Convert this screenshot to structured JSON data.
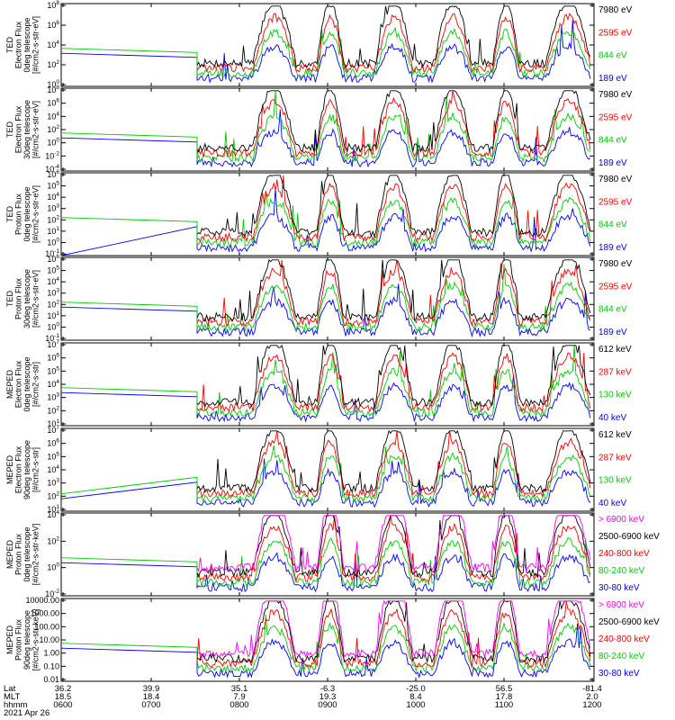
{
  "chart_data": [
    {
      "type": "line",
      "ylabel_lines": [
        "TED",
        "Electron Flux",
        "0deg telescope",
        "[#/cm2-s-str-eV]"
      ],
      "ytick_labels": [
        "10^0",
        "10^2",
        "10^4",
        "10^6",
        "10^8"
      ],
      "ylim_log10": [
        -0.3,
        8
      ],
      "series": [
        {
          "name": "7980 eV",
          "color": "#000000"
        },
        {
          "name": "2595 eV",
          "color": "#ff0000"
        },
        {
          "name": "844 eV",
          "color": "#00cc00"
        },
        {
          "name": "189 eV",
          "color": "#0000ff"
        }
      ]
    },
    {
      "type": "line",
      "ylabel_lines": [
        "TED",
        "Electron Flux",
        "30deg telescope",
        "[#/cm2-s-str-eV]"
      ],
      "ytick_labels": [
        "10^-4",
        "10^-2",
        "10^0",
        "10^2",
        "10^4",
        "10^6",
        "10^8"
      ],
      "ylim_log10": [
        -5,
        8
      ],
      "series": [
        {
          "name": "7980 eV",
          "color": "#000000"
        },
        {
          "name": "2595 eV",
          "color": "#ff0000"
        },
        {
          "name": "844 eV",
          "color": "#00cc00"
        },
        {
          "name": "189 eV",
          "color": "#0000ff"
        }
      ]
    },
    {
      "type": "line",
      "ylabel_lines": [
        "TED",
        "Proton Flux",
        "0deg telescope",
        "[#/cm2-s-str-eV]"
      ],
      "ytick_labels": [
        "10^-1",
        "10^0",
        "10^1",
        "10^2",
        "10^3",
        "10^4",
        "10^5",
        "10^6"
      ],
      "ylim_log10": [
        -1,
        6
      ],
      "series": [
        {
          "name": "7980 eV",
          "color": "#000000"
        },
        {
          "name": "2595 eV",
          "color": "#ff0000"
        },
        {
          "name": "844 eV",
          "color": "#00cc00"
        },
        {
          "name": "189 eV",
          "color": "#0000ff"
        }
      ]
    },
    {
      "type": "line",
      "ylabel_lines": [
        "TED",
        "Proton Flux",
        "30deg telescope",
        "[#/cm2-s-str-eV]"
      ],
      "ytick_labels": [
        "10^-1",
        "10^0",
        "10^1",
        "10^2",
        "10^3",
        "10^4",
        "10^5",
        "10^6"
      ],
      "ylim_log10": [
        -1,
        6
      ],
      "series": [
        {
          "name": "7980 eV",
          "color": "#000000"
        },
        {
          "name": "2595 eV",
          "color": "#ff0000"
        },
        {
          "name": "844 eV",
          "color": "#00cc00"
        },
        {
          "name": "189 eV",
          "color": "#0000ff"
        }
      ]
    },
    {
      "type": "line",
      "ylabel_lines": [
        "MEPED",
        "Electron Flux",
        "0deg telescope",
        "[#/cm2-s-str]"
      ],
      "ytick_labels": [
        "10^1",
        "10^2",
        "10^3",
        "10^4",
        "10^5",
        "10^6",
        "10^7"
      ],
      "ylim_log10": [
        1,
        7
      ],
      "series": [
        {
          "name": "612 keV",
          "color": "#000000"
        },
        {
          "name": "287 keV",
          "color": "#ff0000"
        },
        {
          "name": "130 keV",
          "color": "#00cc00"
        },
        {
          "name": "40 keV",
          "color": "#0000ff"
        }
      ]
    },
    {
      "type": "line",
      "ylabel_lines": [
        "MEPED",
        "Electron Flux",
        "90deg telescope",
        "[#/cm2-s-str]"
      ],
      "ytick_labels": [
        "10^1",
        "10^2",
        "10^3",
        "10^4",
        "10^5",
        "10^6",
        "10^7"
      ],
      "ylim_log10": [
        1,
        7
      ],
      "series": [
        {
          "name": "612 keV",
          "color": "#000000"
        },
        {
          "name": "287 keV",
          "color": "#ff0000"
        },
        {
          "name": "130 keV",
          "color": "#00cc00"
        },
        {
          "name": "40 keV",
          "color": "#0000ff"
        }
      ]
    },
    {
      "type": "line",
      "ylabel_lines": [
        "MEPED",
        "Proton Flux",
        "0deg telescope",
        "[#/cm2-s-str-keV]"
      ],
      "ytick_labels": [
        "10^-2",
        "10^0",
        "10^2",
        "10^4"
      ],
      "ylim_log10": [
        -2.5,
        5.2
      ],
      "series": [
        {
          "name": "> 6900 keV",
          "color": "#ff00ff"
        },
        {
          "name": "2500-6900 keV",
          "color": "#000000"
        },
        {
          "name": "240-800 keV",
          "color": "#ff0000"
        },
        {
          "name": "80-240 keV",
          "color": "#00cc00"
        },
        {
          "name": "30-80 keV",
          "color": "#0000ff"
        }
      ]
    },
    {
      "type": "line",
      "ylabel_lines": [
        "MEPED",
        "Proton Flux",
        "90deg telescope",
        "[#/cm2-s-str-keV]"
      ],
      "ytick_labels": [
        "0.01",
        "0.10",
        "1.00",
        "10.00",
        "100.00",
        "1000.00",
        "10000.00"
      ],
      "ylim_log10": [
        -2,
        4
      ],
      "series": [
        {
          "name": "> 6900 keV",
          "color": "#ff00ff"
        },
        {
          "name": "2500-6900 keV",
          "color": "#000000"
        },
        {
          "name": "240-800 keV",
          "color": "#ff0000"
        },
        {
          "name": "80-240 keV",
          "color": "#00cc00"
        },
        {
          "name": "30-80 keV",
          "color": "#0000ff"
        }
      ]
    }
  ],
  "x_axis": {
    "row_labels": [
      "Lat",
      "MLT",
      "hhmm"
    ],
    "date": "2021 Apr 26",
    "columns": [
      {
        "lat": "36.2",
        "mlt": "18.5",
        "hhmm": "0600"
      },
      {
        "lat": "39.9",
        "mlt": "18.4",
        "hhmm": "0700"
      },
      {
        "lat": "35.1",
        "mlt": "7.9",
        "hhmm": "0800"
      },
      {
        "lat": "-6.3",
        "mlt": "19.3",
        "hhmm": "0900"
      },
      {
        "lat": "-25.0",
        "mlt": "8.4",
        "hhmm": "1000"
      },
      {
        "lat": "56.5",
        "mlt": "17.8",
        "hhmm": "1100"
      },
      {
        "lat": "-81.4",
        "mlt": "2.0",
        "hhmm": "1200"
      }
    ]
  }
}
